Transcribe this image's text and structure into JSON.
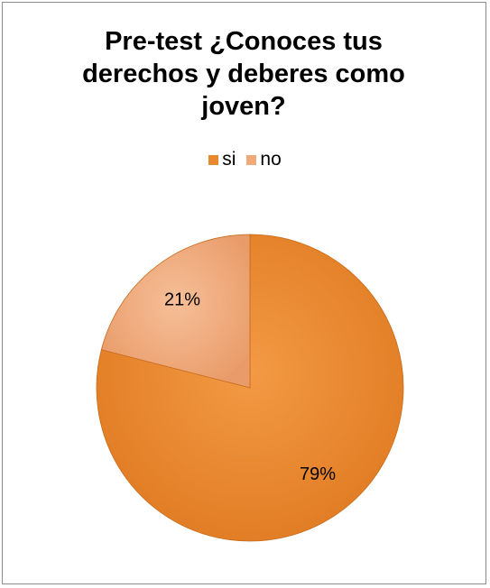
{
  "chart_data": {
    "type": "pie",
    "title": "Pre-test ¿Conoces tus derechos y deberes como joven?",
    "title_lines": [
      "Pre-test ¿Conoces tus",
      "derechos y deberes como",
      "joven?"
    ],
    "legend_position": "top",
    "slices": [
      {
        "label": "si",
        "value": 79,
        "display": "79%",
        "color": "#e8892f"
      },
      {
        "label": "no",
        "value": 21,
        "display": "21%",
        "color": "#efa97b"
      }
    ]
  }
}
